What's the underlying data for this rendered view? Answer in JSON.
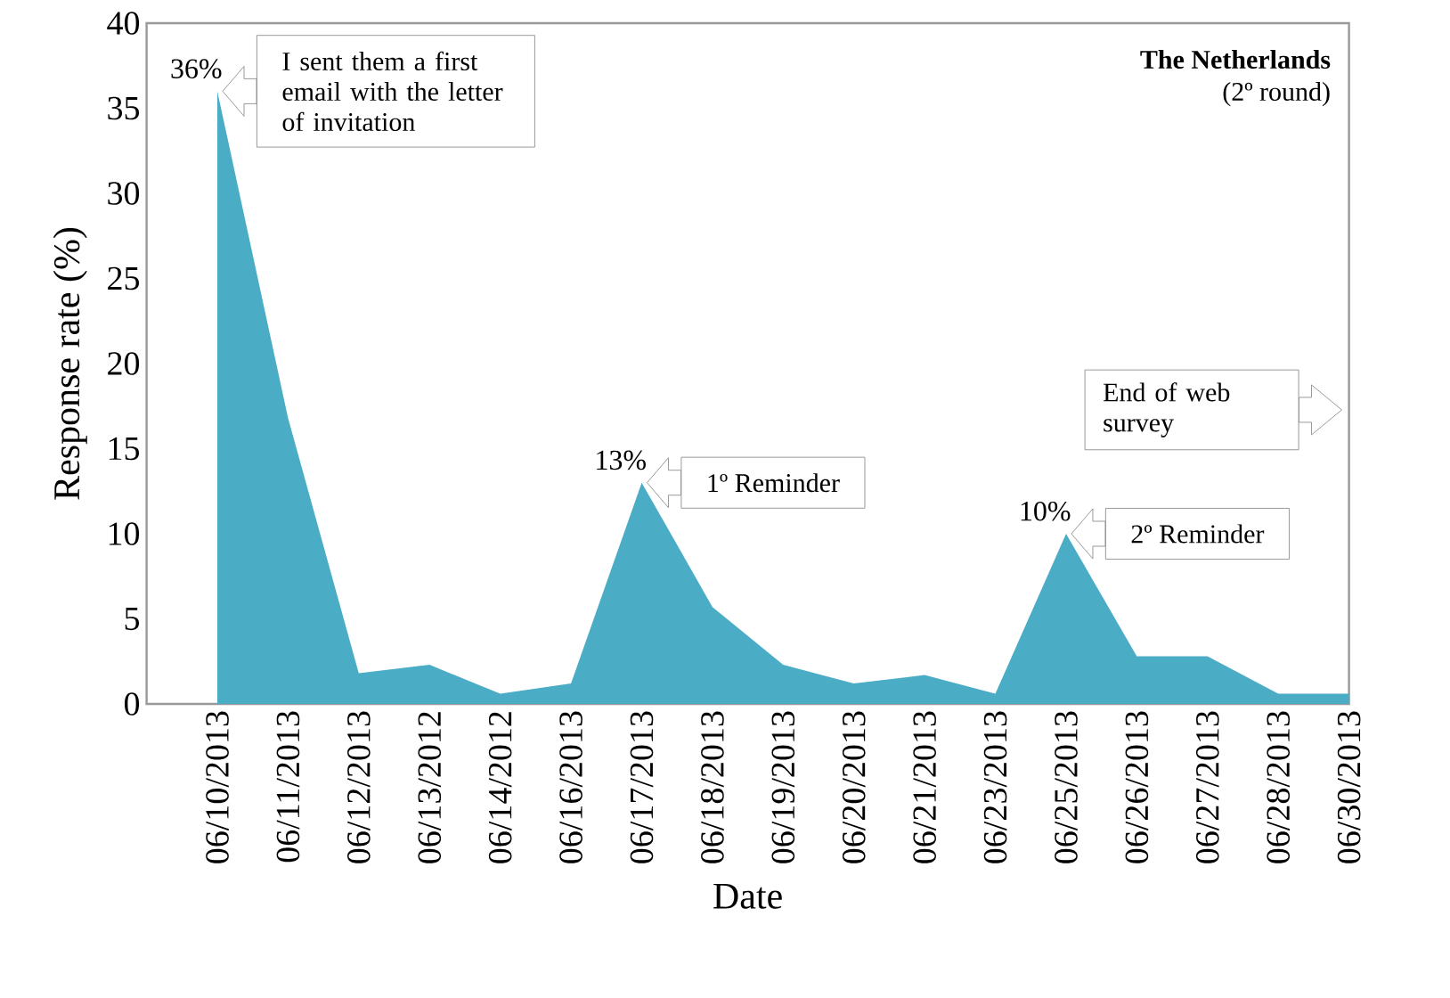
{
  "chart_data": {
    "type": "area",
    "title": "The Netherlands",
    "subtitle": "(2º round)",
    "xlabel": "Date",
    "ylabel": "Response rate (%)",
    "categories": [
      "06/10/2013",
      "06/11/2013",
      "06/12/2013",
      "06/13/2012",
      "06/14/2012",
      "06/16/2013",
      "06/17/2013",
      "06/18/2013",
      "06/19/2013",
      "06/20/2013",
      "06/21/2013",
      "06/23/2013",
      "06/25/2013",
      "06/26/2013",
      "06/27/2013",
      "06/28/2013",
      "06/30/2013"
    ],
    "values": [
      36,
      16.8,
      1.8,
      2.3,
      0.6,
      1.2,
      13,
      5.7,
      2.3,
      1.2,
      1.7,
      0.6,
      10,
      2.8,
      2.8,
      0.6,
      0.6
    ],
    "value_labels": [
      "36%",
      null,
      null,
      null,
      null,
      null,
      "13%",
      null,
      null,
      null,
      null,
      null,
      "10%",
      null,
      null,
      null,
      null
    ],
    "color": "#4bacc6",
    "ylim": [
      0,
      40
    ],
    "yticks": [
      0,
      5,
      10,
      15,
      20,
      25,
      30,
      35,
      40
    ],
    "annotations": [
      {
        "text": "I sent them a first email with the letter of invitation",
        "x": "06/10/2013",
        "y": 36
      },
      {
        "text": "1º Reminder",
        "x": "06/17/2013",
        "y": 13
      },
      {
        "text": "2º Reminder",
        "x": "06/25/2013",
        "y": 10
      },
      "End of web survey"
    ]
  }
}
